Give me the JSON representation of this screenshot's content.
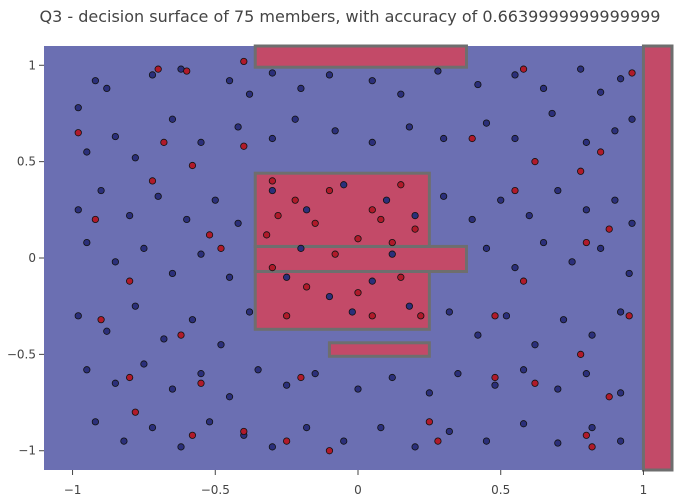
{
  "chart_data": {
    "type": "scatter",
    "title": "Q3 - decision surface of 75 members, with accuracy of 0.6639999999999999",
    "xlabel": "",
    "ylabel": "",
    "xlim": [
      -1.1,
      1.1
    ],
    "ylim": [
      -1.1,
      1.1
    ],
    "x_ticks": [
      -1,
      -0.5,
      0,
      0.5,
      1
    ],
    "x_tick_labels": [
      "−1",
      "−0.5",
      "0",
      "0.5",
      "1"
    ],
    "y_ticks": [
      -1,
      -0.5,
      0,
      0.5,
      1
    ],
    "y_tick_labels": [
      "−1",
      "−0.5",
      "0",
      "0.5",
      "1"
    ],
    "grid": false,
    "colors": {
      "class_0_region": "#6b6fb2",
      "class_1_region": "#c34a68",
      "boundary": "#6e6e6e",
      "class_0_point": "#2b2f7a",
      "class_1_point": "#b01a2a",
      "point_edge": "#111111"
    },
    "class_1_regions": [
      {
        "x": [
          -0.36,
          0.38
        ],
        "y": [
          0.06,
          -0.07
        ]
      },
      {
        "x": [
          -0.36,
          0.25
        ],
        "y": [
          0.44,
          0.06
        ]
      },
      {
        "x": [
          -0.36,
          0.25
        ],
        "y": [
          -0.07,
          -0.37
        ]
      },
      {
        "x": [
          -0.1,
          0.25
        ],
        "y": [
          -0.44,
          -0.51
        ]
      },
      {
        "x": [
          -0.36,
          0.38
        ],
        "y": [
          1.1,
          0.99
        ]
      },
      {
        "x": [
          1.0,
          1.1
        ],
        "y": [
          1.1,
          -1.1
        ]
      }
    ],
    "series": [
      {
        "class": 0,
        "points": [
          [
            -0.92,
            0.92
          ],
          [
            -0.98,
            0.78
          ],
          [
            -0.88,
            0.88
          ],
          [
            -0.72,
            0.95
          ],
          [
            -0.62,
            0.98
          ],
          [
            -0.45,
            0.92
          ],
          [
            -0.38,
            0.85
          ],
          [
            -0.3,
            0.96
          ],
          [
            -0.2,
            0.88
          ],
          [
            -0.1,
            0.95
          ],
          [
            0.05,
            0.92
          ],
          [
            0.15,
            0.85
          ],
          [
            0.28,
            0.97
          ],
          [
            0.42,
            0.9
          ],
          [
            0.55,
            0.95
          ],
          [
            0.65,
            0.88
          ],
          [
            0.78,
            0.98
          ],
          [
            0.85,
            0.86
          ],
          [
            0.92,
            0.93
          ],
          [
            -0.95,
            0.55
          ],
          [
            -0.85,
            0.63
          ],
          [
            -0.78,
            0.52
          ],
          [
            -0.65,
            0.72
          ],
          [
            -0.55,
            0.6
          ],
          [
            -0.42,
            0.68
          ],
          [
            -0.3,
            0.62
          ],
          [
            -0.22,
            0.72
          ],
          [
            -0.08,
            0.66
          ],
          [
            0.05,
            0.6
          ],
          [
            0.18,
            0.68
          ],
          [
            0.3,
            0.62
          ],
          [
            0.45,
            0.7
          ],
          [
            0.55,
            0.62
          ],
          [
            0.68,
            0.75
          ],
          [
            0.8,
            0.6
          ],
          [
            0.9,
            0.66
          ],
          [
            0.96,
            0.72
          ],
          [
            -0.98,
            0.25
          ],
          [
            -0.9,
            0.35
          ],
          [
            -0.8,
            0.22
          ],
          [
            -0.7,
            0.32
          ],
          [
            -0.6,
            0.2
          ],
          [
            -0.5,
            0.3
          ],
          [
            -0.42,
            0.18
          ],
          [
            0.3,
            0.32
          ],
          [
            0.4,
            0.2
          ],
          [
            0.5,
            0.3
          ],
          [
            0.6,
            0.22
          ],
          [
            0.7,
            0.35
          ],
          [
            0.8,
            0.25
          ],
          [
            0.9,
            0.3
          ],
          [
            0.96,
            0.18
          ],
          [
            -0.95,
            0.08
          ],
          [
            -0.85,
            -0.02
          ],
          [
            -0.75,
            0.05
          ],
          [
            -0.65,
            -0.08
          ],
          [
            -0.55,
            0.02
          ],
          [
            -0.45,
            -0.1
          ],
          [
            0.45,
            0.05
          ],
          [
            0.55,
            -0.05
          ],
          [
            0.65,
            0.08
          ],
          [
            0.75,
            -0.02
          ],
          [
            0.85,
            0.05
          ],
          [
            0.95,
            -0.08
          ],
          [
            -0.98,
            -0.3
          ],
          [
            -0.88,
            -0.38
          ],
          [
            -0.78,
            -0.25
          ],
          [
            -0.68,
            -0.42
          ],
          [
            -0.58,
            -0.32
          ],
          [
            -0.48,
            -0.45
          ],
          [
            -0.38,
            -0.28
          ],
          [
            0.32,
            -0.28
          ],
          [
            0.42,
            -0.4
          ],
          [
            0.52,
            -0.3
          ],
          [
            0.62,
            -0.45
          ],
          [
            0.72,
            -0.32
          ],
          [
            0.82,
            -0.4
          ],
          [
            0.92,
            -0.28
          ],
          [
            -0.95,
            -0.58
          ],
          [
            -0.85,
            -0.65
          ],
          [
            -0.75,
            -0.55
          ],
          [
            -0.65,
            -0.68
          ],
          [
            -0.55,
            -0.6
          ],
          [
            -0.45,
            -0.72
          ],
          [
            -0.35,
            -0.58
          ],
          [
            -0.25,
            -0.66
          ],
          [
            -0.15,
            -0.6
          ],
          [
            0.0,
            -0.68
          ],
          [
            0.12,
            -0.62
          ],
          [
            0.25,
            -0.7
          ],
          [
            0.35,
            -0.6
          ],
          [
            0.48,
            -0.66
          ],
          [
            0.58,
            -0.58
          ],
          [
            0.7,
            -0.68
          ],
          [
            0.8,
            -0.6
          ],
          [
            0.92,
            -0.7
          ],
          [
            -0.92,
            -0.85
          ],
          [
            -0.82,
            -0.95
          ],
          [
            -0.72,
            -0.88
          ],
          [
            -0.62,
            -0.98
          ],
          [
            -0.52,
            -0.85
          ],
          [
            -0.4,
            -0.92
          ],
          [
            -0.3,
            -0.98
          ],
          [
            -0.18,
            -0.88
          ],
          [
            -0.05,
            -0.95
          ],
          [
            0.08,
            -0.88
          ],
          [
            0.2,
            -0.98
          ],
          [
            0.32,
            -0.9
          ],
          [
            0.45,
            -0.95
          ],
          [
            0.58,
            -0.86
          ],
          [
            0.7,
            -0.96
          ],
          [
            0.82,
            -0.88
          ],
          [
            0.92,
            -0.95
          ],
          [
            -0.3,
            0.35
          ],
          [
            -0.18,
            0.25
          ],
          [
            -0.05,
            0.38
          ],
          [
            0.1,
            0.3
          ],
          [
            0.2,
            0.22
          ],
          [
            -0.25,
            -0.1
          ],
          [
            -0.1,
            -0.2
          ],
          [
            0.05,
            -0.12
          ],
          [
            0.18,
            -0.25
          ],
          [
            -0.2,
            0.05
          ],
          [
            0.12,
            0.02
          ],
          [
            -0.02,
            -0.28
          ]
        ]
      },
      {
        "class": 1,
        "points": [
          [
            -0.98,
            0.65
          ],
          [
            -0.7,
            0.98
          ],
          [
            -0.6,
            0.97
          ],
          [
            -0.4,
            1.02
          ],
          [
            0.58,
            0.98
          ],
          [
            0.96,
            0.96
          ],
          [
            -0.68,
            0.6
          ],
          [
            -0.58,
            0.48
          ],
          [
            -0.4,
            0.58
          ],
          [
            0.4,
            0.62
          ],
          [
            0.62,
            0.5
          ],
          [
            0.85,
            0.55
          ],
          [
            -0.92,
            0.2
          ],
          [
            -0.72,
            0.4
          ],
          [
            -0.52,
            0.12
          ],
          [
            0.55,
            0.35
          ],
          [
            0.78,
            0.45
          ],
          [
            0.88,
            0.15
          ],
          [
            -0.8,
            -0.12
          ],
          [
            -0.48,
            0.05
          ],
          [
            0.58,
            -0.12
          ],
          [
            0.8,
            0.08
          ],
          [
            -0.9,
            -0.32
          ],
          [
            -0.62,
            -0.4
          ],
          [
            0.48,
            -0.3
          ],
          [
            0.78,
            -0.5
          ],
          [
            0.95,
            -0.3
          ],
          [
            -0.8,
            -0.62
          ],
          [
            -0.55,
            -0.65
          ],
          [
            -0.2,
            -0.62
          ],
          [
            0.48,
            -0.62
          ],
          [
            0.62,
            -0.65
          ],
          [
            0.88,
            -0.72
          ],
          [
            -0.78,
            -0.8
          ],
          [
            -0.58,
            -0.92
          ],
          [
            -0.4,
            -0.9
          ],
          [
            -0.25,
            -0.95
          ],
          [
            -0.1,
            -1.0
          ],
          [
            0.25,
            -0.85
          ],
          [
            0.28,
            -0.95
          ],
          [
            0.8,
            -0.92
          ],
          [
            0.82,
            -0.98
          ],
          [
            -0.3,
            0.4
          ],
          [
            -0.22,
            0.3
          ],
          [
            -0.1,
            0.35
          ],
          [
            0.05,
            0.25
          ],
          [
            0.15,
            0.38
          ],
          [
            0.2,
            0.15
          ],
          [
            -0.32,
            0.12
          ],
          [
            -0.15,
            0.18
          ],
          [
            0.0,
            0.1
          ],
          [
            0.12,
            0.08
          ],
          [
            -0.3,
            -0.05
          ],
          [
            -0.18,
            -0.15
          ],
          [
            0.0,
            -0.18
          ],
          [
            0.15,
            -0.1
          ],
          [
            0.22,
            -0.3
          ],
          [
            -0.25,
            -0.3
          ],
          [
            0.05,
            -0.3
          ],
          [
            -0.08,
            0.02
          ],
          [
            0.08,
            0.2
          ],
          [
            -0.28,
            0.22
          ]
        ]
      }
    ]
  }
}
